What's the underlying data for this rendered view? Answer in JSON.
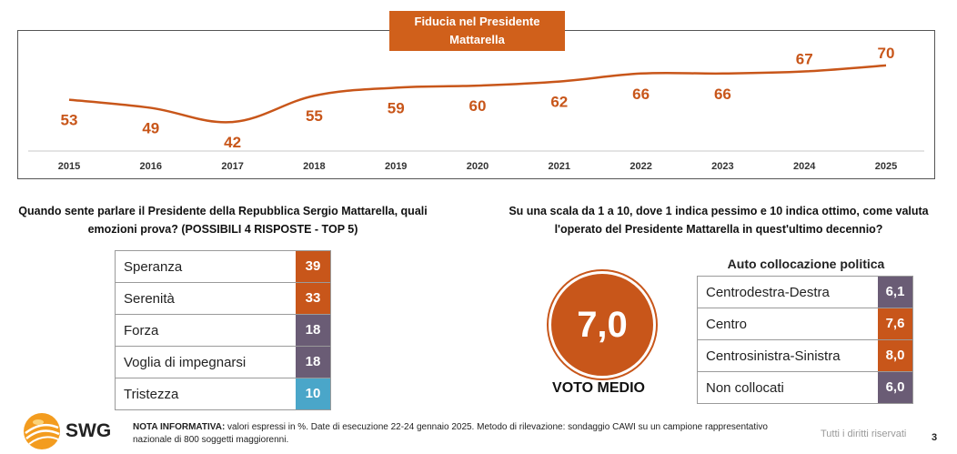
{
  "chart_data": {
    "type": "line",
    "title": "Fiducia nel Presidente Mattarella",
    "x": [
      "2015",
      "2016",
      "2017",
      "2018",
      "2019",
      "2020",
      "2021",
      "2022",
      "2023",
      "2024",
      "2025"
    ],
    "series": [
      {
        "values": [
          53,
          49,
          42,
          55,
          59,
          60,
          62,
          66,
          66,
          67,
          70
        ]
      }
    ],
    "xlabel": "",
    "ylabel": "",
    "ylim": [
      38,
      74
    ],
    "grid": false,
    "color": "#c8561a"
  },
  "emotions": {
    "question": "Quando sente parlare il Presidente della Repubblica Sergio Mattarella, quali emozioni prova? (POSSIBILI 4 RISPOSTE - TOP 5)",
    "rows": [
      {
        "label": "Speranza",
        "value": "39",
        "color": "#c8561a"
      },
      {
        "label": "Serenità",
        "value": "33",
        "color": "#c8561a"
      },
      {
        "label": "Forza",
        "value": "18",
        "color": "#6a5c75"
      },
      {
        "label": "Voglia di impegnarsi",
        "value": "18",
        "color": "#6a5c75"
      },
      {
        "label": "Tristezza",
        "value": "10",
        "color": "#4aa6c9"
      }
    ]
  },
  "rating": {
    "question": "Su una scala da 1 a 10, dove 1 indica pessimo e 10 indica ottimo, come valuta l'operato del Presidente Mattarella in quest'ultimo decennio?",
    "average_value": "7,0",
    "average_label": "VOTO MEDIO",
    "political_title": "Auto collocazione politica",
    "political_rows": [
      {
        "label": "Centrodestra-Destra",
        "value": "6,1",
        "color": "#6a5c75"
      },
      {
        "label": "Centro",
        "value": "7,6",
        "color": "#c8561a"
      },
      {
        "label": "Centrosinistra-Sinistra",
        "value": "8,0",
        "color": "#c8561a"
      },
      {
        "label": "Non collocati",
        "value": "6,0",
        "color": "#6a5c75"
      }
    ]
  },
  "footer": {
    "logo_text": "SWG",
    "note_label": "NOTA INFORMATIVA:",
    "note_text": " valori espressi in %. Date di esecuzione 22-24 gennaio 2025. Metodo di rilevazione: sondaggio CAWI su un campione rappresentativo nazionale di 800 soggetti maggiorenni.",
    "rights": "Tutti i diritti riservati",
    "page_number": "3"
  }
}
